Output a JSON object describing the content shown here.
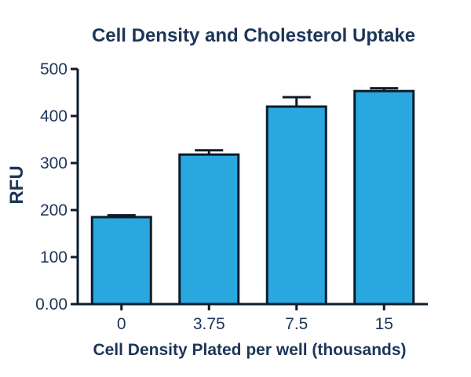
{
  "chart_data": {
    "type": "bar",
    "title": "Cell Density and Cholesterol Uptake",
    "xlabel": "Cell Density Plated per well (thousands)",
    "ylabel": "RFU",
    "categories": [
      "0",
      "3.75",
      "7.5",
      "15"
    ],
    "values": [
      185,
      318,
      420,
      453
    ],
    "error_bars": [
      4,
      9,
      20,
      6
    ],
    "ylim": [
      0,
      500
    ],
    "yticks": [
      0,
      100,
      200,
      300,
      400,
      500
    ],
    "ytick_labels": [
      "0.00",
      "100",
      "200",
      "300",
      "400",
      "500"
    ],
    "grid": false,
    "legend": "none",
    "colors": {
      "bar": "#29a8e0",
      "outline": "#0d1b2a",
      "text": "#1d3557"
    }
  }
}
